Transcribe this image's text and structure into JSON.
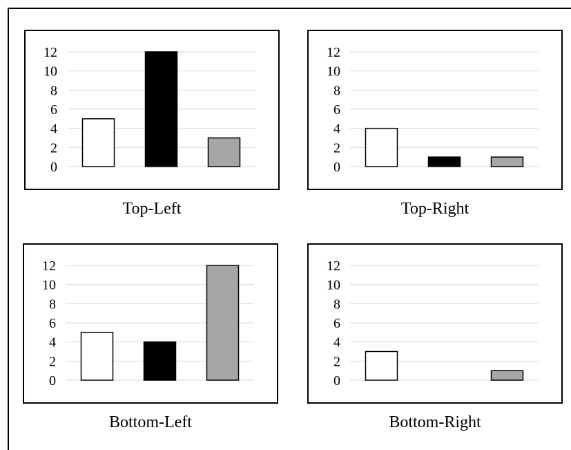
{
  "chart_data": [
    {
      "type": "bar",
      "title": "Top-Left",
      "categories": [
        "",
        "",
        ""
      ],
      "values": [
        5,
        12,
        3
      ],
      "colors": [
        "#ffffff",
        "#000000",
        "#a6a6a6"
      ],
      "ylim": [
        0,
        12
      ],
      "yticks": [
        0,
        2,
        4,
        6,
        8,
        10,
        12
      ],
      "ytick_labels": [
        "0",
        "2",
        "4",
        "6",
        "8",
        "10",
        "12"
      ],
      "grid": true,
      "legend": "none"
    },
    {
      "type": "bar",
      "title": "Top-Right",
      "categories": [
        "",
        "",
        ""
      ],
      "values": [
        4,
        1,
        1
      ],
      "colors": [
        "#ffffff",
        "#000000",
        "#a6a6a6"
      ],
      "ylim": [
        0,
        12
      ],
      "yticks": [
        0,
        2,
        4,
        6,
        8,
        10,
        12
      ],
      "ytick_labels": [
        "0",
        "2",
        "4",
        "6",
        "8",
        "10",
        "12"
      ],
      "grid": true,
      "legend": "none"
    },
    {
      "type": "bar",
      "title": "Bottom-Left",
      "categories": [
        "",
        "",
        ""
      ],
      "values": [
        5,
        4,
        12
      ],
      "colors": [
        "#ffffff",
        "#000000",
        "#a6a6a6"
      ],
      "ylim": [
        0,
        12
      ],
      "yticks": [
        0,
        2,
        4,
        6,
        8,
        10,
        12
      ],
      "ytick_labels": [
        "0",
        "2",
        "4",
        "6",
        "8",
        "10",
        "12"
      ],
      "grid": true,
      "legend": "none"
    },
    {
      "type": "bar",
      "title": "Bottom-Right",
      "categories": [
        "",
        "",
        ""
      ],
      "values": [
        3,
        0,
        1
      ],
      "colors": [
        "#ffffff",
        "#000000",
        "#a6a6a6"
      ],
      "ylim": [
        0,
        12
      ],
      "yticks": [
        0,
        2,
        4,
        6,
        8,
        10,
        12
      ],
      "ytick_labels": [
        "0",
        "2",
        "4",
        "6",
        "8",
        "10",
        "12"
      ],
      "grid": true,
      "legend": "none"
    }
  ]
}
